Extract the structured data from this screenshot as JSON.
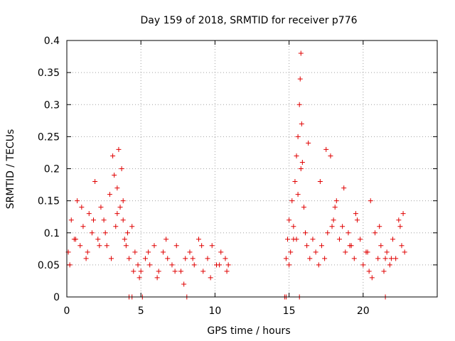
{
  "chart_data": {
    "type": "scatter",
    "title": "Day 159 of 2018, SRMTID for receiver p776",
    "xlabel": "GPS time / hours",
    "ylabel": "SRMTID / TECUs",
    "xlim": [
      0,
      25
    ],
    "ylim": [
      0,
      0.4
    ],
    "xticks": [
      0,
      5,
      10,
      15,
      20
    ],
    "xtick_labels": [
      "0",
      "5",
      "10",
      "15",
      "20"
    ],
    "yticks": [
      0,
      0.05,
      0.1,
      0.15,
      0.2,
      0.25,
      0.3,
      0.35,
      0.4
    ],
    "ytick_labels": [
      "0",
      "0.05",
      "0.1",
      "0.15",
      "0.2",
      "0.25",
      "0.3",
      "0.35",
      "0.4"
    ],
    "grid": true,
    "marker": "plus",
    "color": "#e00000",
    "series": [
      {
        "name": "SRMTID",
        "x": [
          0.1,
          0.3,
          0.5,
          0.7,
          0.9,
          1.1,
          1.3,
          1.5,
          1.7,
          1.9,
          2.1,
          2.3,
          2.5,
          2.7,
          2.9,
          3.1,
          3.2,
          3.3,
          3.4,
          3.5,
          3.6,
          3.7,
          3.8,
          3.9,
          4.0,
          4.2,
          4.4,
          4.6,
          4.8,
          5.0,
          5.3,
          5.6,
          5.9,
          6.2,
          6.5,
          6.8,
          7.1,
          7.4,
          7.7,
          8.0,
          8.3,
          8.6,
          8.9,
          9.2,
          9.5,
          9.8,
          10.1,
          10.4,
          10.7,
          10.9,
          0.2,
          0.6,
          1.0,
          1.4,
          1.8,
          2.2,
          2.6,
          3.0,
          3.4,
          3.8,
          4.1,
          4.5,
          4.9,
          5.5,
          6.1,
          6.7,
          7.3,
          7.9,
          8.5,
          9.1,
          9.7,
          10.3,
          10.8,
          14.8,
          14.9,
          15.0,
          15.1,
          15.2,
          15.3,
          15.4,
          15.5,
          15.6,
          15.7,
          15.75,
          15.8,
          15.85,
          15.9,
          16.0,
          16.1,
          16.2,
          16.4,
          16.6,
          16.8,
          17.0,
          17.2,
          17.4,
          17.6,
          17.8,
          18.0,
          18.2,
          18.4,
          18.6,
          18.8,
          19.0,
          19.2,
          19.4,
          19.6,
          19.8,
          20.0,
          20.2,
          20.4,
          20.6,
          20.8,
          21.0,
          21.2,
          21.4,
          21.6,
          21.8,
          22.0,
          22.2,
          22.4,
          22.6,
          22.8,
          15.0,
          15.3,
          15.6,
          16.3,
          17.1,
          17.9,
          18.7,
          19.5,
          20.3,
          21.1,
          21.9,
          22.7,
          15.5,
          15.8,
          17.5,
          18.1,
          19.1,
          20.5,
          21.5,
          22.5,
          4.2,
          4.4,
          5.1,
          8.1,
          14.7,
          14.8,
          15.7,
          21.5
        ],
        "y": [
          0.07,
          0.12,
          0.09,
          0.15,
          0.08,
          0.11,
          0.06,
          0.13,
          0.1,
          0.18,
          0.09,
          0.14,
          0.12,
          0.08,
          0.16,
          0.22,
          0.19,
          0.11,
          0.17,
          0.23,
          0.14,
          0.2,
          0.12,
          0.09,
          0.08,
          0.06,
          0.11,
          0.07,
          0.05,
          0.04,
          0.06,
          0.05,
          0.08,
          0.04,
          0.07,
          0.06,
          0.05,
          0.08,
          0.04,
          0.06,
          0.07,
          0.05,
          0.09,
          0.04,
          0.06,
          0.08,
          0.05,
          0.07,
          0.06,
          0.05,
          0.05,
          0.09,
          0.14,
          0.07,
          0.12,
          0.08,
          0.1,
          0.06,
          0.13,
          0.15,
          0.1,
          0.04,
          0.03,
          0.07,
          0.03,
          0.09,
          0.04,
          0.02,
          0.06,
          0.08,
          0.03,
          0.05,
          0.04,
          0.06,
          0.09,
          0.12,
          0.07,
          0.15,
          0.11,
          0.18,
          0.22,
          0.25,
          0.3,
          0.34,
          0.38,
          0.27,
          0.21,
          0.14,
          0.1,
          0.08,
          0.06,
          0.09,
          0.07,
          0.05,
          0.08,
          0.06,
          0.1,
          0.22,
          0.12,
          0.15,
          0.09,
          0.11,
          0.07,
          0.1,
          0.08,
          0.06,
          0.12,
          0.09,
          0.05,
          0.07,
          0.04,
          0.03,
          0.1,
          0.06,
          0.08,
          0.04,
          0.07,
          0.05,
          0.09,
          0.06,
          0.12,
          0.08,
          0.07,
          0.05,
          0.09,
          0.16,
          0.24,
          0.18,
          0.11,
          0.17,
          0.13,
          0.07,
          0.11,
          0.06,
          0.13,
          0.09,
          0.2,
          0.23,
          0.14,
          0.08,
          0.15,
          0.06,
          0.11,
          0.0,
          0.0,
          0.0,
          0.0,
          0.0,
          0.0,
          0.0,
          0.0
        ]
      }
    ]
  }
}
